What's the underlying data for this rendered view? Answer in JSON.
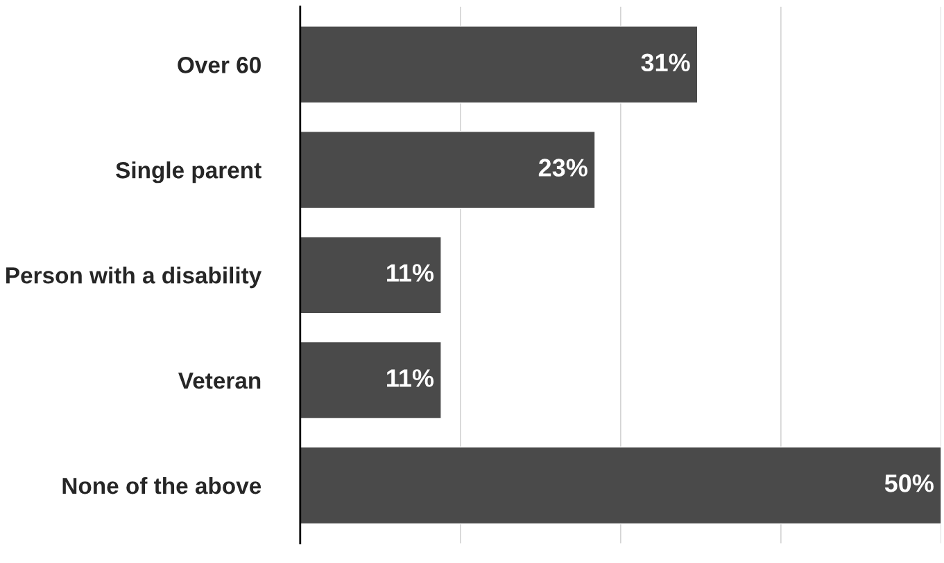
{
  "chart_data": {
    "type": "bar",
    "orientation": "horizontal",
    "categories": [
      "Over 60",
      "Single parent",
      "Person with a disability",
      "Veteran",
      "None of the above"
    ],
    "values": [
      31,
      23,
      11,
      11,
      50
    ],
    "value_labels": [
      "31%",
      "23%",
      "11%",
      "11%",
      "50%"
    ],
    "color": "#4a4a4a",
    "xlim": [
      0,
      50
    ],
    "xticks": [
      {
        "value": 0,
        "label": null
      },
      {
        "value": 12.5,
        "label": null
      },
      {
        "value": 25,
        "label": null
      },
      {
        "value": 37.5,
        "label": null
      },
      {
        "value": 50,
        "label": null
      }
    ],
    "grid": "x",
    "tick_labels": "y"
  }
}
